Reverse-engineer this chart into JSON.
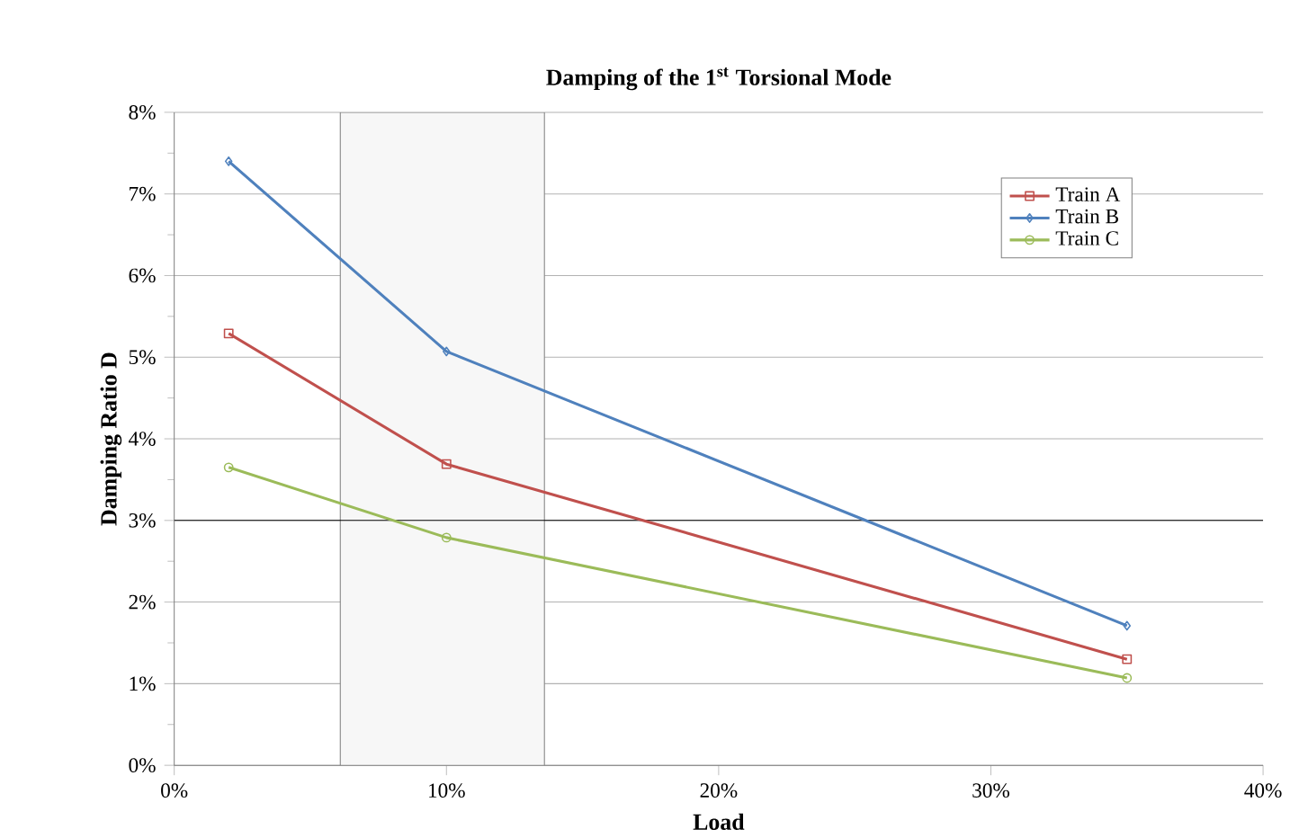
{
  "chart_data": {
    "type": "line",
    "title": "Damping of the 1$^{st}$ Torsional  Mode",
    "xlabel": "Load",
    "ylabel": "Damping Ratio D",
    "x": [
      2,
      10,
      35
    ],
    "series": [
      {
        "name": "Train A",
        "color": "#c0504d",
        "marker": "square",
        "values": [
          5.29,
          3.69,
          1.3
        ]
      },
      {
        "name": "Train B",
        "color": "#4f81bd",
        "marker": "diamond",
        "values": [
          7.4,
          5.07,
          1.71
        ]
      },
      {
        "name": "Train C",
        "color": "#9bbb59",
        "marker": "circle",
        "values": [
          3.65,
          2.79,
          1.07
        ]
      }
    ],
    "xlim": [
      0,
      40
    ],
    "xticks": [
      {
        "value": 0,
        "label": "0%"
      },
      {
        "value": 10,
        "label": "10%"
      },
      {
        "value": 20,
        "label": "20%"
      },
      {
        "value": 30,
        "label": "30%"
      },
      {
        "value": 40,
        "label": "40%"
      }
    ],
    "ylim": [
      0,
      8
    ],
    "yticks": [
      {
        "value": 0,
        "label": "0%"
      },
      {
        "value": 1,
        "label": "1%"
      },
      {
        "value": 2,
        "label": "2%"
      },
      {
        "value": 3,
        "label": "3%"
      },
      {
        "value": 4,
        "label": "4%"
      },
      {
        "value": 5,
        "label": "5%"
      },
      {
        "value": 6,
        "label": "6%"
      },
      {
        "value": 7,
        "label": "7%"
      },
      {
        "value": 8,
        "label": "8%"
      }
    ],
    "ref_lines": [
      {
        "axis": "y",
        "value": 3,
        "color": "#000000"
      }
    ],
    "bands": [
      {
        "axis": "x",
        "from": 6.1,
        "to": 13.6,
        "color": "#808080"
      }
    ],
    "grid": "y",
    "legend": "top right",
    "line_style": "solid"
  }
}
